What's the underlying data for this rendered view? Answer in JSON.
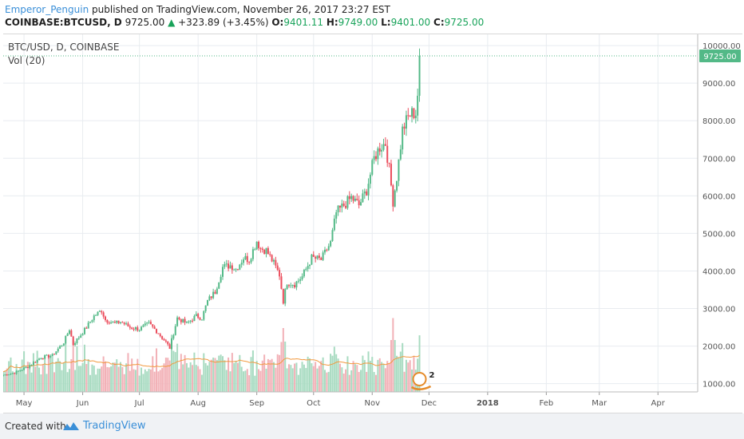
{
  "header": {
    "author": "Emperor_Penguin",
    "published": "published on TradingView.com, November 26, 2017 23:27 EST",
    "symbol": "COINBASE:BTCUSD, D",
    "last": "9725.00",
    "change": "+323.89 (+3.45%)",
    "o_label": "O:",
    "o": "9401.11",
    "h_label": "H:",
    "h": "9749.00",
    "l_label": "L:",
    "l": "9401.00",
    "c_label": "C:",
    "c": "9725.00"
  },
  "legend": {
    "title": "BTC/USD, D, COINBASE",
    "volume": "Vol (20)"
  },
  "footer": {
    "created_with": "Created with",
    "brand": "TradingView"
  },
  "colors": {
    "up": "#53b987",
    "down": "#eb4d5c",
    "vol_up": "#a8dbc1",
    "vol_down": "#f2b1b7",
    "vol_ma": "#f2993f",
    "price_line": "#53b987",
    "grid": "#e8ecf0",
    "badge": "#e58b2a"
  },
  "chart_data": {
    "type": "candlestick",
    "title": "BTC/USD, D, COINBASE",
    "interval": "D",
    "last_price": 9725.0,
    "price_label": "9725.00",
    "y_ticks": [
      "10000.00",
      "9000.00",
      "8000.00",
      "7000.00",
      "6000.00",
      "5000.00",
      "4000.00",
      "3000.00",
      "2000.00",
      "1000.00"
    ],
    "y_tick_values": [
      10000,
      9000,
      8000,
      7000,
      6000,
      5000,
      4000,
      3000,
      2000,
      1000
    ],
    "ylim": [
      780,
      10300
    ],
    "x_ticks": [
      "May",
      "Jun",
      "Jul",
      "Aug",
      "Sep",
      "Oct",
      "Nov",
      "Dec",
      "2018",
      "Feb",
      "Mar",
      "Apr"
    ],
    "x_tick_dates": [
      "2017-05-01",
      "2017-06-01",
      "2017-07-01",
      "2017-08-01",
      "2017-09-01",
      "2017-10-01",
      "2017-11-01",
      "2017-12-01",
      "2018-01-01",
      "2018-02-01",
      "2018-03-01",
      "2018-04-01"
    ],
    "bold_ticks": [
      "2018"
    ],
    "xlim": [
      "2017-04-20",
      "2018-04-22"
    ],
    "price_anchors": [
      [
        "2017-04-20",
        1230
      ],
      [
        "2017-04-26",
        1290
      ],
      [
        "2017-05-03",
        1450
      ],
      [
        "2017-05-10",
        1700
      ],
      [
        "2017-05-16",
        1750
      ],
      [
        "2017-05-22",
        2100
      ],
      [
        "2017-05-25",
        2450
      ],
      [
        "2017-05-27",
        2050
      ],
      [
        "2017-05-31",
        2300
      ],
      [
        "2017-06-03",
        2500
      ],
      [
        "2017-06-07",
        2800
      ],
      [
        "2017-06-11",
        2950
      ],
      [
        "2017-06-13",
        2700
      ],
      [
        "2017-06-18",
        2600
      ],
      [
        "2017-06-21",
        2650
      ],
      [
        "2017-06-26",
        2500
      ],
      [
        "2017-07-01",
        2450
      ],
      [
        "2017-07-06",
        2600
      ],
      [
        "2017-07-10",
        2400
      ],
      [
        "2017-07-15",
        2100
      ],
      [
        "2017-07-17",
        1950
      ],
      [
        "2017-07-21",
        2750
      ],
      [
        "2017-07-26",
        2600
      ],
      [
        "2017-07-31",
        2800
      ],
      [
        "2017-08-03",
        2750
      ],
      [
        "2017-08-06",
        3200
      ],
      [
        "2017-08-10",
        3450
      ],
      [
        "2017-08-14",
        4100
      ],
      [
        "2017-08-18",
        4150
      ],
      [
        "2017-08-21",
        4050
      ],
      [
        "2017-08-25",
        4350
      ],
      [
        "2017-08-28",
        4300
      ],
      [
        "2017-09-01",
        4800
      ],
      [
        "2017-09-03",
        4600
      ],
      [
        "2017-09-06",
        4550
      ],
      [
        "2017-09-10",
        4200
      ],
      [
        "2017-09-13",
        3900
      ],
      [
        "2017-09-15",
        3200
      ],
      [
        "2017-09-17",
        3700
      ],
      [
        "2017-09-21",
        3650
      ],
      [
        "2017-09-25",
        3850
      ],
      [
        "2017-09-30",
        4350
      ],
      [
        "2017-10-05",
        4300
      ],
      [
        "2017-10-10",
        4750
      ],
      [
        "2017-10-13",
        5550
      ],
      [
        "2017-10-16",
        5700
      ],
      [
        "2017-10-21",
        5950
      ],
      [
        "2017-10-25",
        5750
      ],
      [
        "2017-10-29",
        6150
      ],
      [
        "2017-11-02",
        7000
      ],
      [
        "2017-11-05",
        7300
      ],
      [
        "2017-11-08",
        7400
      ],
      [
        "2017-11-10",
        6700
      ],
      [
        "2017-11-12",
        5850
      ],
      [
        "2017-11-14",
        6500
      ],
      [
        "2017-11-17",
        7750
      ],
      [
        "2017-11-20",
        8100
      ],
      [
        "2017-11-22",
        8200
      ],
      [
        "2017-11-24",
        8200
      ],
      [
        "2017-11-25",
        8700
      ],
      [
        "2017-11-26",
        9725
      ]
    ],
    "volume_note": "volume histogram plotted under price; highest bars mid-September and mid-November",
    "volume_ma_length": 20,
    "events_badge": "2"
  }
}
